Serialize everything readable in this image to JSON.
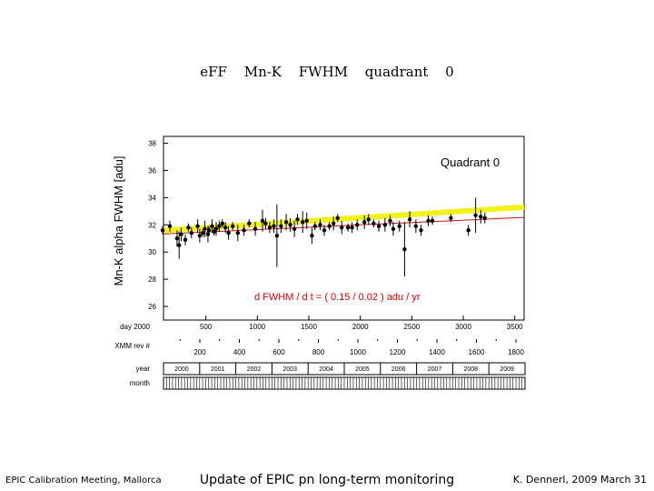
{
  "slide": {
    "title": "eFF Mn-K FWHM quadrant 0",
    "footer_left": "EPIC Calibration Meeting, Mallorca",
    "footer_center": "Update of EPIC pn long-term monitoring",
    "footer_right": "K. Dennerl, 2009 March 31"
  },
  "chart_data": {
    "type": "scatter",
    "title": "",
    "panel_label": "Quadrant 0",
    "ylabel": "Mn-K alpha FWHM [adu]",
    "xlim": [
      0,
      3600
    ],
    "ylim": [
      25,
      38.5
    ],
    "y_ticks": [
      26,
      28,
      30,
      32,
      34,
      36,
      38
    ],
    "x_axis_day": {
      "label": "day 2000",
      "ticks": [
        500,
        1000,
        1500,
        2000,
        2500,
        3000,
        3500
      ]
    },
    "x_axis_rev": {
      "label": "XMM rev #",
      "ticks": [
        200,
        400,
        600,
        800,
        1000,
        1200,
        1400,
        1600,
        1800
      ]
    },
    "x_axis_year": {
      "label": "year",
      "ticks": [
        "2000",
        "2001",
        "2002",
        "2003",
        "2004",
        "2005",
        "2006",
        "2007",
        "2008",
        "2009"
      ]
    },
    "x_axis_month": {
      "label": "month"
    },
    "fit_annotation": "d FWHM / d t = ( 0.15 / 0.02 ) adu / yr",
    "fit_line_yellow": {
      "x": [
        0,
        3600
      ],
      "y": [
        31.55,
        33.3
      ]
    },
    "fit_line_red": {
      "x": [
        0,
        3600
      ],
      "y": [
        31.3,
        32.55
      ]
    },
    "colors": {
      "fit_yellow": "#f2f21a",
      "fit_red": "#cc1111",
      "annotation": "#dd0000",
      "points": "#000000"
    },
    "series": [
      {
        "x": [
          80,
          150,
          220,
          240,
          260,
          300,
          330,
          360,
          420,
          440,
          470,
          490,
          520,
          530,
          560,
          580,
          600,
          630,
          660,
          690,
          720,
          760,
          810,
          870,
          920,
          980,
          1050,
          1080,
          1120,
          1160,
          1190,
          1230,
          1280,
          1320,
          1360,
          1390,
          1440,
          1480,
          1530,
          1560,
          1610,
          1650,
          1700,
          1740,
          1780,
          1820,
          1880,
          1920,
          1970,
          2040,
          2080,
          2130,
          2180,
          2240,
          2290,
          2320,
          2380,
          2430,
          2480,
          2540,
          2590,
          2660,
          2700,
          2880,
          3050,
          3120,
          3170,
          3210
        ],
        "y": [
          31.6,
          31.9,
          31.0,
          30.5,
          31.3,
          30.9,
          31.8,
          31.4,
          31.9,
          31.2,
          31.4,
          31.7,
          31.3,
          31.6,
          31.9,
          31.5,
          31.7,
          31.9,
          32.1,
          31.8,
          31.4,
          31.9,
          31.4,
          31.6,
          32.1,
          31.7,
          32.3,
          32.1,
          31.8,
          31.9,
          31.2,
          31.9,
          32.2,
          32.0,
          31.7,
          32.4,
          32.2,
          32.3,
          31.2,
          31.9,
          32.0,
          31.6,
          31.9,
          32.1,
          32.5,
          31.8,
          31.8,
          31.8,
          32.0,
          32.2,
          32.4,
          32.1,
          31.9,
          32.0,
          32.3,
          31.7,
          31.9,
          30.2,
          32.4,
          31.9,
          31.6,
          32.3,
          32.3,
          32.5,
          31.6,
          32.7,
          32.6,
          32.5
        ],
        "err": [
          0.3,
          0.4,
          0.6,
          1.0,
          0.5,
          0.4,
          0.3,
          0.4,
          0.5,
          0.5,
          0.3,
          0.6,
          0.6,
          0.3,
          0.5,
          0.3,
          0.5,
          0.4,
          0.3,
          0.4,
          0.5,
          0.3,
          0.6,
          0.4,
          0.3,
          0.5,
          0.8,
          0.4,
          0.4,
          0.5,
          2.3,
          0.5,
          0.6,
          0.5,
          0.6,
          0.4,
          0.8,
          0.6,
          0.6,
          0.3,
          0.4,
          0.4,
          0.3,
          0.5,
          0.3,
          0.5,
          0.3,
          0.4,
          0.4,
          0.5,
          0.4,
          0.3,
          0.4,
          0.5,
          0.4,
          0.5,
          0.4,
          2.0,
          0.6,
          0.5,
          0.4,
          0.4,
          0.3,
          0.3,
          0.4,
          1.3,
          0.5,
          0.4
        ]
      }
    ]
  }
}
